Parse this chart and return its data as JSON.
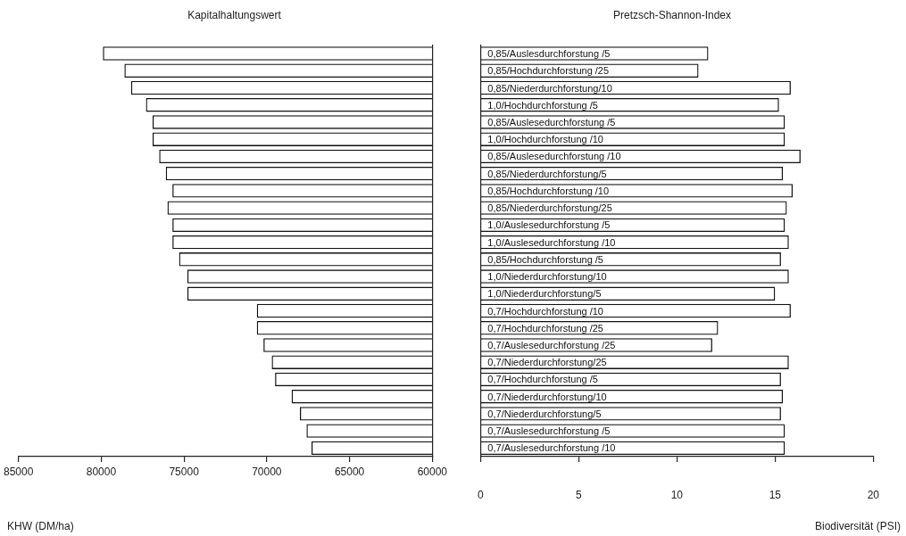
{
  "chart_data": [
    {
      "type": "bar",
      "orientation": "horizontal",
      "title": "Kapitalhaltungswert",
      "categories": [
        null,
        null,
        null,
        null,
        null,
        null,
        null,
        null,
        null,
        null,
        null,
        null,
        null,
        null,
        null,
        null,
        null,
        null,
        null,
        null,
        null,
        null,
        null,
        null
      ],
      "values": [
        79900,
        78600,
        78200,
        77300,
        76900,
        76900,
        76500,
        76100,
        75700,
        76000,
        75700,
        75700,
        75300,
        74800,
        74800,
        70600,
        70600,
        70200,
        69700,
        69500,
        68500,
        68000,
        67600,
        67300
      ],
      "color": "#111111",
      "xlim": [
        85000,
        60000
      ],
      "xticks": [
        85000,
        80000,
        75000,
        70000,
        65000,
        60000
      ],
      "xlabel": "KHW (DM/ha)"
    },
    {
      "type": "bar",
      "orientation": "horizontal",
      "title": "Pretzsch-Shannon-Index",
      "categories": [
        "0,85/Auslesdurchforstung /5",
        "0,85/Hochdurchforstung /25",
        "0,85/Niederdurchforstung/10",
        "1,0/Hochdurchforstung /5",
        "0,85/Auslesedurchforstung /5",
        "1,0/Hochdurchforstung /10",
        "0,85/Auslesedurchforstung /10",
        "0,85/Niederdurchforstung/5",
        "0,85/Hochdurchforstung /10",
        "0,85/Niederdurchforstung/25",
        "1,0/Auslesedurchforstung /5",
        "1,0/Auslesedurchforstung /10",
        "0,85/Hochdurchforstung /5",
        "1,0/Niederdurchforstung/10",
        "1,0/Niederdurchforstung/5",
        "0,7/Hochdurchforstung /10",
        "0,7/Hochdurchforstung /25",
        "0,7/Auslesedurchforstung /25",
        "0,7/Niederdurchforstung/25",
        "0,7/Hochdurchforstung /5",
        "0,7/Niederdurchforstung/10",
        "0,7/Niederdurchforstung/5",
        "0,7/Auslesedurchforstung /5",
        "0,7/Auslesedurchforstung /10"
      ],
      "values": [
        11.6,
        11.1,
        15.8,
        15.2,
        15.5,
        15.5,
        16.3,
        15.4,
        15.9,
        15.6,
        15.5,
        15.7,
        15.3,
        15.7,
        15.0,
        15.8,
        12.1,
        11.8,
        15.7,
        15.3,
        15.4,
        15.3,
        15.5,
        15.5
      ],
      "color": "#111111",
      "xlim": [
        0,
        20
      ],
      "xticks": [
        0,
        5,
        10,
        15,
        20
      ],
      "xlabel": "Biodiversität (PSI)"
    }
  ]
}
